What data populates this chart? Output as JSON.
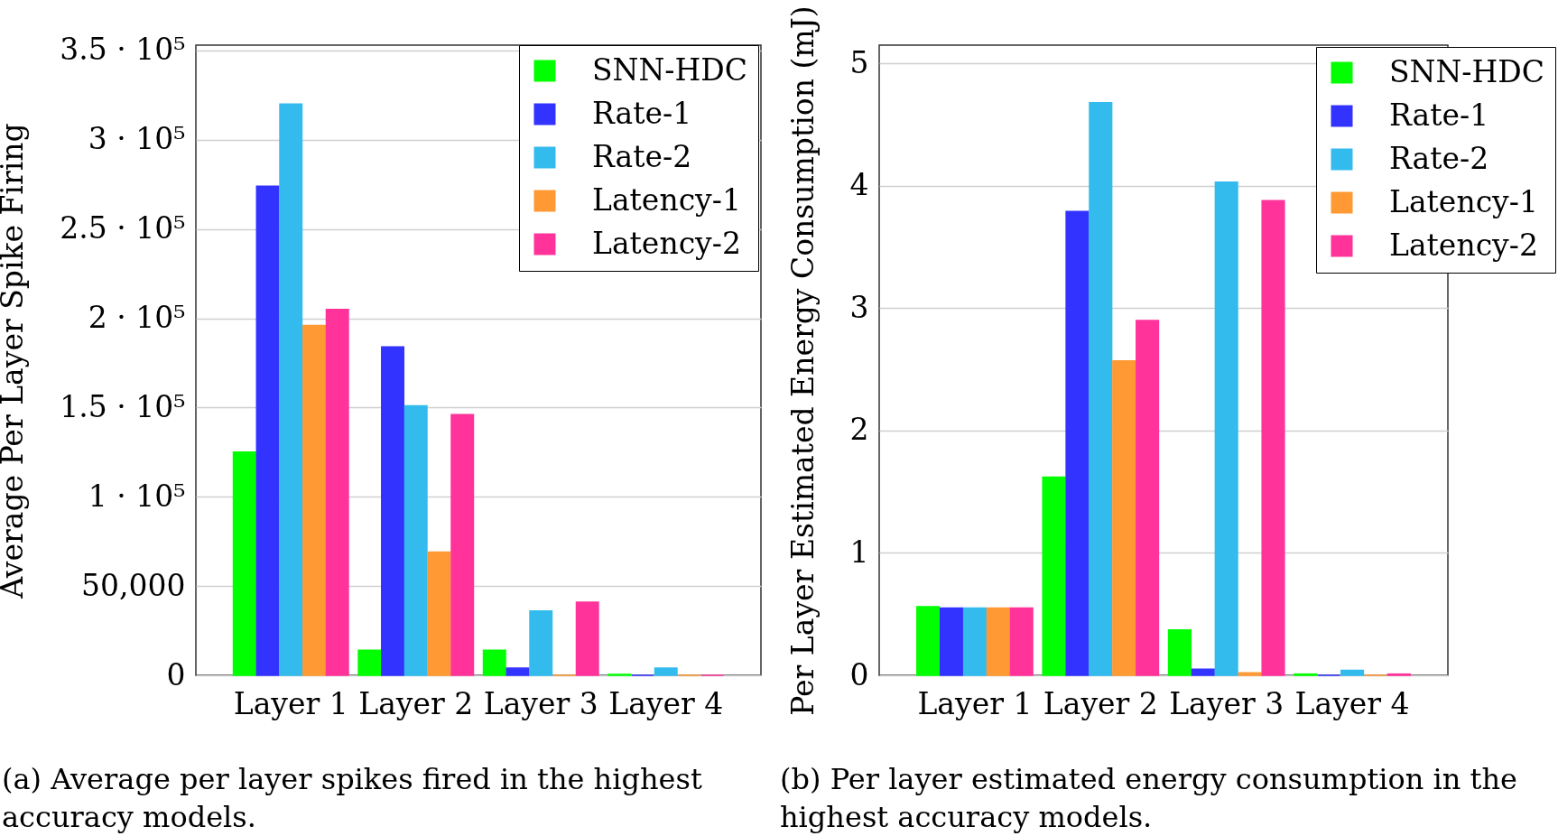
{
  "chart_data": [
    {
      "type": "bar",
      "categories": [
        "Layer 1",
        "Layer 2",
        "Layer 3",
        "Layer 4"
      ],
      "ylabel": "Average Per Layer Spike Firing",
      "ylim": [
        0,
        353000
      ],
      "yticks": [
        0,
        {
          "value": 50000,
          "label": "50,000"
        },
        {
          "value": 100000,
          "label": "1 · 10⁵"
        },
        {
          "value": 150000,
          "label": "1.5 · 10⁵"
        },
        {
          "value": 200000,
          "label": "2 · 10⁵"
        },
        {
          "value": 250000,
          "label": "2.5 · 10⁵"
        },
        {
          "value": 300000,
          "label": "3 · 10⁵"
        },
        {
          "value": 350000,
          "label": "3.5 · 10⁵"
        }
      ],
      "grid": "y",
      "legend": "top right",
      "series": [
        {
          "name": "SNN-HDC",
          "color": "#00ff00",
          "values": [
            125000,
            14000,
            14000,
            500
          ]
        },
        {
          "name": "Rate-1",
          "color": "#3333ff",
          "values": [
            274000,
            184000,
            4000,
            0
          ]
        },
        {
          "name": "Rate-2",
          "color": "#33bbee",
          "values": [
            320000,
            151000,
            36000,
            4000
          ]
        },
        {
          "name": "Latency-1",
          "color": "#ff9933",
          "values": [
            196000,
            69000,
            0,
            0
          ]
        },
        {
          "name": "Latency-2",
          "color": "#ff3399",
          "values": [
            205000,
            146000,
            41000,
            0
          ]
        }
      ],
      "annotations": [
        "(a) Average per layer spikes fired in the highest accuracy models."
      ]
    },
    {
      "type": "bar",
      "categories": [
        "Layer 1",
        "Layer 2",
        "Layer 3",
        "Layer 4"
      ],
      "ylabel": "Per Layer Estimated Energy Consumption (mJ)",
      "ylim": [
        0,
        5.15
      ],
      "yticks": [
        0,
        1,
        2,
        3,
        4,
        5
      ],
      "grid": "y",
      "legend": "top right",
      "series": [
        {
          "name": "SNN-HDC",
          "color": "#00ff00",
          "values": [
            0.56,
            1.62,
            0.37,
            0.01
          ]
        },
        {
          "name": "Rate-1",
          "color": "#3333ff",
          "values": [
            0.55,
            3.79,
            0.05,
            0
          ]
        },
        {
          "name": "Rate-2",
          "color": "#33bbee",
          "values": [
            0.55,
            4.68,
            4.03,
            0.04
          ]
        },
        {
          "name": "Latency-1",
          "color": "#ff9933",
          "values": [
            0.55,
            2.57,
            0.02,
            0
          ]
        },
        {
          "name": "Latency-2",
          "color": "#ff3399",
          "values": [
            0.55,
            2.9,
            3.88,
            0.01
          ]
        }
      ],
      "annotations": [
        "(b) Per layer estimated energy consumption in the highest accuracy models."
      ]
    }
  ]
}
